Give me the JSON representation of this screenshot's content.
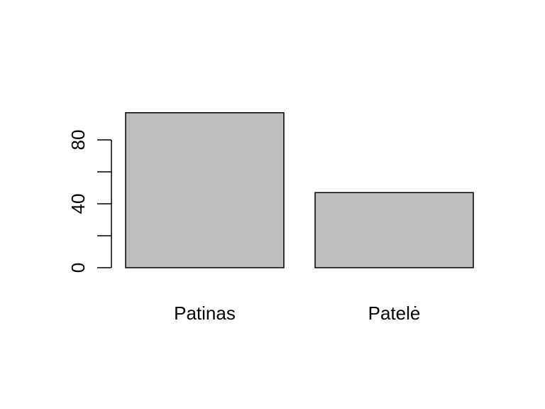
{
  "chart_data": {
    "type": "bar",
    "title": "",
    "xlabel": "",
    "ylabel": "",
    "categories": [
      "Patinas",
      "Patelė"
    ],
    "values": [
      97,
      47
    ],
    "ylim": [
      0,
      100
    ],
    "yticks": [
      0,
      20,
      40,
      60,
      80
    ],
    "ytick_labels": [
      "0",
      "",
      "40",
      "",
      "80"
    ],
    "grid": false,
    "legend": "none",
    "bar_color": "#bebebe",
    "bar_edge_color": "#000000"
  }
}
